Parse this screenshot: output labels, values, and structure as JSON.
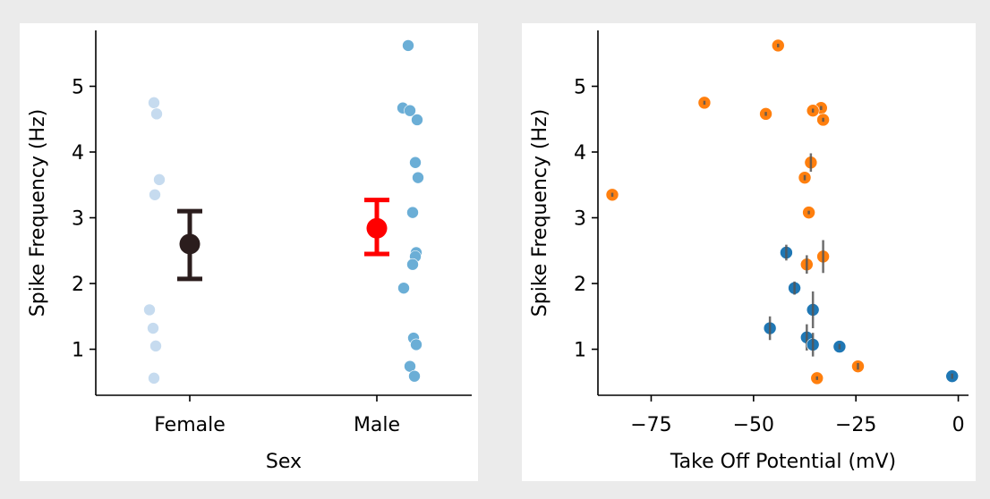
{
  "chart_data": [
    {
      "type": "scatter",
      "xlabel": "Sex",
      "ylabel": "Spike Frequency (Hz)",
      "categories": [
        "Female",
        "Male"
      ],
      "ylim": [
        0.3,
        5.85
      ],
      "yticks": [
        "1",
        "2",
        "3",
        "4",
        "5"
      ],
      "grid": false,
      "series": [
        {
          "category": "Female",
          "color": "#c6dbef",
          "points": [
            4.75,
            4.58,
            3.58,
            3.35,
            1.6,
            1.32,
            1.05,
            0.56
          ]
        },
        {
          "category": "Male",
          "color": "#6baed6",
          "points": [
            5.62,
            4.67,
            4.63,
            4.49,
            3.84,
            3.61,
            3.08,
            2.47,
            2.41,
            2.29,
            1.93,
            1.17,
            1.07,
            0.74,
            0.59
          ]
        }
      ],
      "summary": [
        {
          "category": "Female",
          "mean": 2.6,
          "err_low": 2.07,
          "err_high": 3.1,
          "color": "#2b1d1d"
        },
        {
          "category": "Male",
          "mean": 2.84,
          "err_low": 2.45,
          "err_high": 3.27,
          "color": "#ff0000"
        }
      ]
    },
    {
      "type": "scatter",
      "xlabel": "Take Off Potential (mV)",
      "ylabel": "Spike Frequency (Hz)",
      "xlim": [
        -88,
        2.5
      ],
      "ylim": [
        0.3,
        5.85
      ],
      "xticks": [
        "−75",
        "−50",
        "−25",
        "0"
      ],
      "yticks": [
        "1",
        "2",
        "3",
        "4",
        "5"
      ],
      "grid": false,
      "series": [
        {
          "color": "#1f77b4",
          "points": [
            {
              "x": -42,
              "y": 2.47,
              "err": 0.12
            },
            {
              "x": -40,
              "y": 1.93,
              "err": 0.1
            },
            {
              "x": -35.5,
              "y": 1.6,
              "err": 0.28
            },
            {
              "x": -46,
              "y": 1.32,
              "err": 0.18
            },
            {
              "x": -37,
              "y": 1.18,
              "err": 0.2
            },
            {
              "x": -35.5,
              "y": 1.07,
              "err": 0.18
            },
            {
              "x": -29,
              "y": 1.04,
              "err": 0.04
            },
            {
              "x": -1.5,
              "y": 0.59,
              "err": 0.04
            }
          ]
        },
        {
          "color": "#ff7f0e",
          "points": [
            {
              "x": -44,
              "y": 5.62,
              "err": 0.0
            },
            {
              "x": -62,
              "y": 4.75,
              "err": 0.03
            },
            {
              "x": -33.5,
              "y": 4.67,
              "err": 0.03
            },
            {
              "x": -35.5,
              "y": 4.63,
              "err": 0.03
            },
            {
              "x": -47,
              "y": 4.58,
              "err": 0.03
            },
            {
              "x": -33,
              "y": 4.49,
              "err": 0.03
            },
            {
              "x": -36,
              "y": 3.84,
              "err": 0.14
            },
            {
              "x": -37.5,
              "y": 3.61,
              "err": 0.04
            },
            {
              "x": -36.5,
              "y": 3.08,
              "err": 0.02
            },
            {
              "x": -33,
              "y": 2.41,
              "err": 0.25
            },
            {
              "x": -37,
              "y": 2.29,
              "err": 0.14
            },
            {
              "x": -84.5,
              "y": 3.35,
              "err": 0.03
            },
            {
              "x": -24.5,
              "y": 0.74,
              "err": 0.05
            },
            {
              "x": -34.5,
              "y": 0.56,
              "err": 0.02
            }
          ]
        }
      ]
    }
  ]
}
